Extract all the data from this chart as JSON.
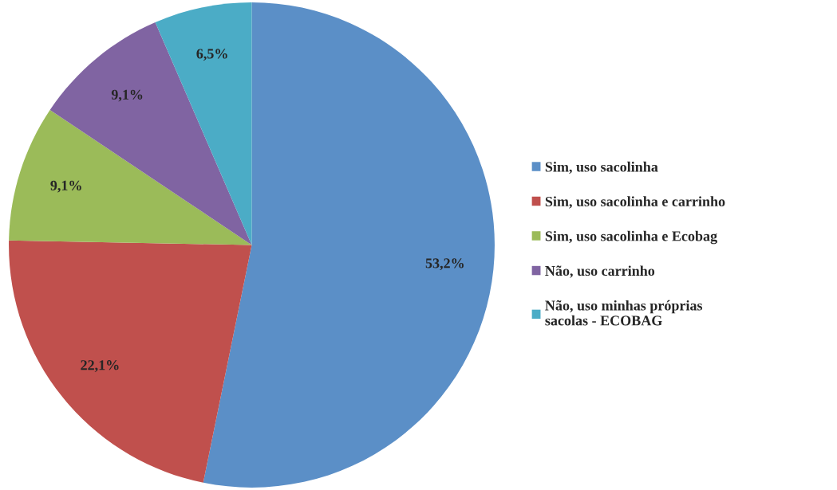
{
  "chart_data": {
    "type": "pie",
    "categories": [
      "Sim, uso sacolinha",
      "Sim, uso sacolinha e carrinho",
      "Sim, uso sacolinha e Ecobag",
      "Não, uso carrinho",
      "Não, uso minhas próprias\nsacolas - ECOBAG"
    ],
    "values": [
      53.2,
      22.1,
      9.1,
      9.1,
      6.5
    ],
    "colors": [
      "#5b8fc7",
      "#c0504d",
      "#9bbb59",
      "#8064a2",
      "#4bacc6"
    ],
    "value_labels": [
      "53,2%",
      "22,1%",
      "9,1%",
      "9,1%",
      "6,5%"
    ],
    "legend": "right"
  }
}
